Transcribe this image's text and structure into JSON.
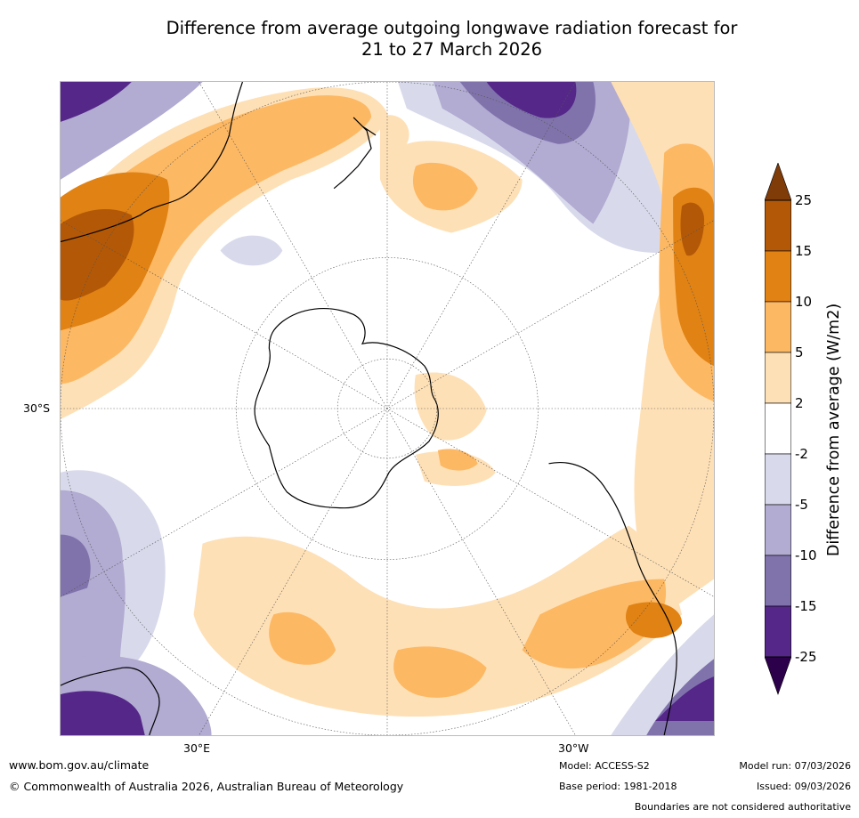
{
  "title": {
    "line1": "Difference from average outgoing longwave radiation forecast for",
    "line2": "21 to 27 March 2026"
  },
  "map": {
    "projection": "south polar stereographic",
    "lat_label": "30°S",
    "lon_labels": [
      "30°E",
      "30°W"
    ]
  },
  "colorbar": {
    "label": "Difference from average (W/m2)",
    "ticks": [
      "25",
      "15",
      "10",
      "5",
      "2",
      "-2",
      "-5",
      "-10",
      "-15",
      "-25"
    ],
    "colors": {
      "gt25": "#7f3b08",
      "15_25": "#b35806",
      "10_15": "#e08214",
      "5_10": "#fdb863",
      "2_5": "#fee0b6",
      "m2_2": "#ffffff",
      "m5_m2": "#d8daeb",
      "m10_m5": "#b2abd2",
      "m15_m10": "#8073ac",
      "m25_m15": "#542788",
      "lt_m25": "#2d004b"
    }
  },
  "footer": {
    "website": "www.bom.gov.au/climate",
    "copyright": "© Commonwealth of Australia 2026, Australian Bureau of Meteorology",
    "model": "Model: ACCESS-S2",
    "base_period": "Base period: 1981-2018",
    "model_run": "Model run: 07/03/2026",
    "issued": "Issued: 09/03/2026",
    "disclaimer": "Boundaries are not considered authoritative"
  }
}
